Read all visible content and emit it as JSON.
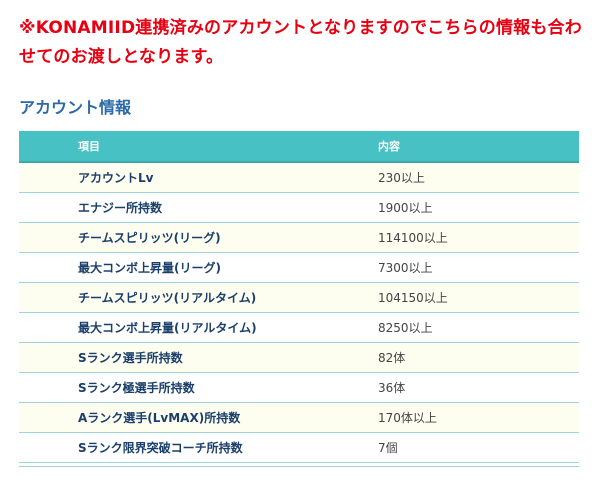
{
  "notice": "※KONAMIID連携済みのアカウントとなりますのでこちらの情報も合わせてのお渡しとなります。",
  "section_title": "アカウント情報",
  "table": {
    "headers": [
      "項目",
      "内容"
    ],
    "rows": [
      {
        "item": "アカウントLv",
        "value": "230以上"
      },
      {
        "item": "エナジー所持数",
        "value": "1900以上"
      },
      {
        "item": "チームスピリッツ(リーグ)",
        "value": "114100以上"
      },
      {
        "item": "最大コンボ上昇量(リーグ)",
        "value": "7300以上"
      },
      {
        "item": "チームスピリッツ(リアルタイム)",
        "value": "104150以上"
      },
      {
        "item": "最大コンボ上昇量(リアルタイム)",
        "value": "8250以上"
      },
      {
        "item": "Sランク選手所持数",
        "value": "82体"
      },
      {
        "item": "Sランク極選手所持数",
        "value": "36体"
      },
      {
        "item": "Aランク選手(LvMAX)所持数",
        "value": "170体以上"
      },
      {
        "item": "Sランク限界突破コーチ所持数",
        "value": "7個"
      }
    ]
  },
  "colors": {
    "notice": "#e60012",
    "section_title": "#2a6aa8",
    "header_bg": "#47c1c4",
    "row_odd_bg": "#fdfdf0",
    "item_text": "#1b3f6b"
  }
}
